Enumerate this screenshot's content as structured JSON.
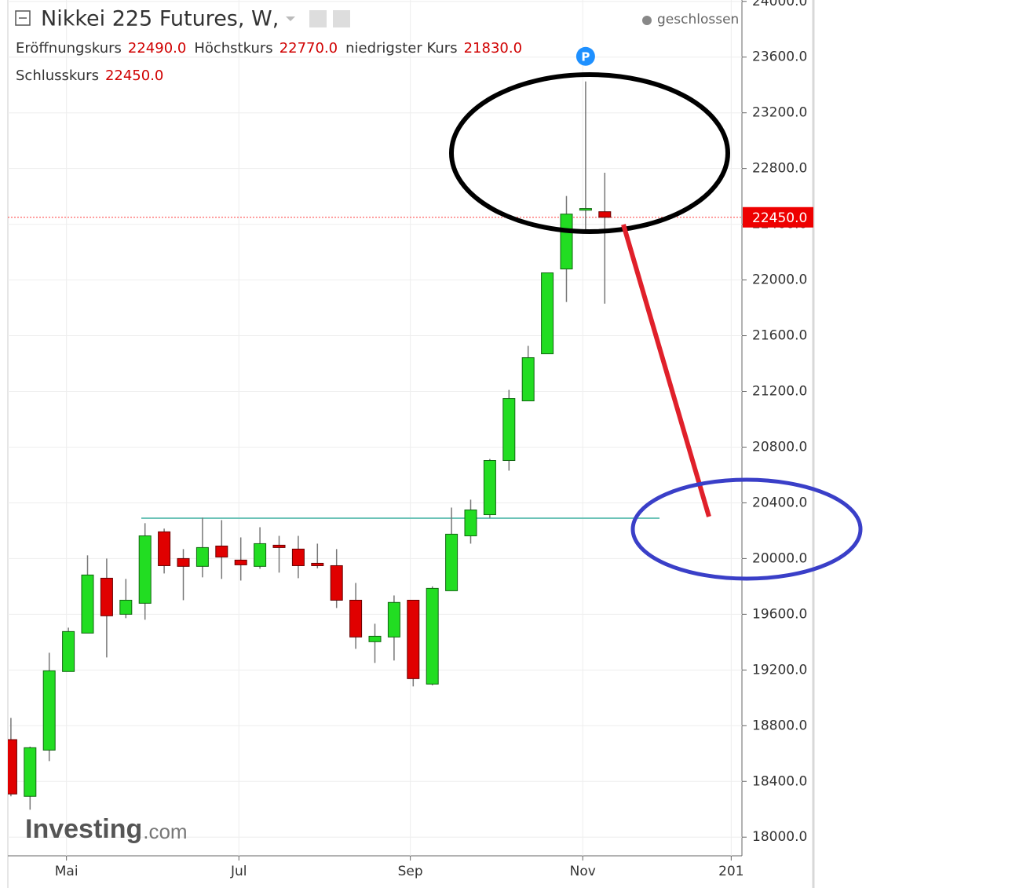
{
  "chart_data": {
    "type": "candlestick",
    "title": "Nikkei 225 Futures, W,",
    "status": "geschlossen",
    "marker": "P",
    "brand": {
      "name": "Investing",
      "suffix": ".com"
    },
    "legend": [
      {
        "name": "Eröffnungskurs",
        "value": "22490.0"
      },
      {
        "name": "Höchstkurs",
        "value": "22770.0"
      },
      {
        "name": "niedrigster Kurs",
        "value": "21830.0"
      },
      {
        "name": "Schlusskurs",
        "value": "22450.0"
      }
    ],
    "up_color": "#22dd22",
    "down_color": "#e00000",
    "x": [
      0,
      1,
      2,
      3,
      4,
      5,
      6,
      7,
      8,
      9,
      10,
      11,
      12,
      13,
      14,
      15,
      16,
      17,
      18,
      19,
      20,
      21,
      22,
      23,
      24,
      25,
      26,
      27,
      28,
      29,
      30,
      31
    ],
    "open": [
      18700,
      18293,
      18625,
      19189,
      19465,
      19859,
      19600,
      19679,
      20192,
      20000,
      19944,
      20090,
      19989,
      19944,
      20096,
      20068,
      19966,
      19949,
      19701,
      19403,
      19437,
      19701,
      19099,
      19769,
      20163,
      20315,
      20704,
      21132,
      21470,
      22079,
      22501,
      22490
    ],
    "high": [
      18856,
      18650,
      19324,
      19504,
      20023,
      20000,
      19854,
      20254,
      20215,
      20068,
      20293,
      20276,
      20152,
      20225,
      20163,
      20163,
      20107,
      20068,
      19825,
      19532,
      19735,
      19701,
      19800,
      20366,
      20423,
      20715,
      21211,
      21527,
      22051,
      22603,
      23425,
      22770
    ],
    "low": [
      18293,
      18197,
      18546,
      19189,
      19465,
      19290,
      19572,
      19561,
      19893,
      19701,
      19865,
      19854,
      19842,
      19927,
      19899,
      19859,
      19930,
      19645,
      19352,
      19251,
      19268,
      19082,
      19090,
      19769,
      20107,
      20290,
      20631,
      21132,
      21470,
      21842,
      22361,
      21830
    ],
    "close": [
      18310,
      18642,
      19194,
      19476,
      19882,
      19589,
      19701,
      20163,
      19949,
      19944,
      20079,
      20011,
      19955,
      20107,
      20079,
      19949,
      19949,
      19701,
      19437,
      19442,
      19685,
      19138,
      19786,
      20175,
      20349,
      20704,
      21149,
      21442,
      22051,
      22473,
      22513,
      22450
    ],
    "xlim": [
      -0.16,
      38.16
    ],
    "xticks": [
      {
        "value": 2.9,
        "label": "Mai"
      },
      {
        "value": 11.9,
        "label": "Jul"
      },
      {
        "value": 20.85,
        "label": "Sep"
      },
      {
        "value": 29.85,
        "label": "Nov"
      },
      {
        "value": 37.6,
        "label": "201"
      }
    ],
    "ylim": [
      17990,
      24010
    ],
    "yticks": [
      {
        "value": 18000,
        "label": "18000.0"
      },
      {
        "value": 18400,
        "label": "18400.0"
      },
      {
        "value": 18800,
        "label": "18800.0"
      },
      {
        "value": 19200,
        "label": "19200.0"
      },
      {
        "value": 19600,
        "label": "19600.0"
      },
      {
        "value": 20000,
        "label": "20000.0"
      },
      {
        "value": 20400,
        "label": "20400.0"
      },
      {
        "value": 20800,
        "label": "20800.0"
      },
      {
        "value": 21200,
        "label": "21200.0"
      },
      {
        "value": 21600,
        "label": "21600.0"
      },
      {
        "value": 22000,
        "label": "22000.0"
      },
      {
        "value": 22400,
        "label": "22400.0"
      },
      {
        "value": 22800,
        "label": "22800.0"
      },
      {
        "value": 23200,
        "label": "23200.0"
      },
      {
        "value": 23600,
        "label": "23600.0"
      },
      {
        "value": 24000,
        "label": "24000.0"
      }
    ],
    "last_price": {
      "value": 22450,
      "label": "22450.0"
    },
    "support_level": 20290,
    "grid": true
  }
}
